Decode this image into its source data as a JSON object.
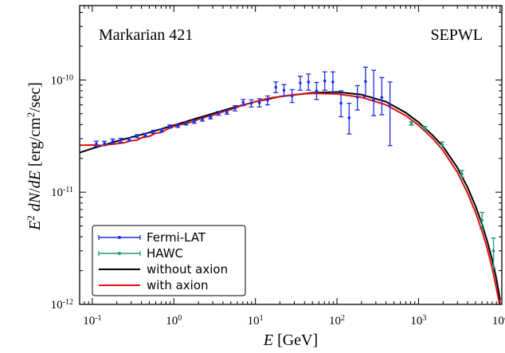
{
  "chart_data": {
    "type": "scatter",
    "annotations": {
      "source": "Markarian 421",
      "model": "SEPWL"
    },
    "xlabel": {
      "symbol": "E",
      "unit": "[GeV]"
    },
    "ylabel": {
      "text": "E2dN/dE [erg/cm2/sec]"
    },
    "x_scale": "log",
    "y_scale": "log",
    "xlim": [
      0.07,
      10500
    ],
    "ylim": [
      1e-12,
      4.6e-10
    ],
    "x_ticks": [
      {
        "value": 0.1,
        "base": "10",
        "exp": "-1"
      },
      {
        "value": 1,
        "base": "10",
        "exp": "0"
      },
      {
        "value": 10,
        "base": "10",
        "exp": "1"
      },
      {
        "value": 100,
        "base": "10",
        "exp": "2"
      },
      {
        "value": 1000,
        "base": "10",
        "exp": "3"
      },
      {
        "value": 10000,
        "base": "10",
        "exp": "4"
      }
    ],
    "y_ticks": [
      {
        "value": 1e-12,
        "base": "10",
        "exp": "-12"
      },
      {
        "value": 1e-11,
        "base": "10",
        "exp": "-11"
      },
      {
        "value": 1e-10,
        "base": "10",
        "exp": "-10"
      }
    ],
    "grid": false,
    "legend_position": "bottom-left",
    "series": [
      {
        "name": "Fermi-LAT",
        "kind": "errorbar",
        "color": "#1f2ee0",
        "points": [
          {
            "x": 0.112,
            "y": 2.7e-11,
            "lo": 2.55e-11,
            "hi": 2.85e-11
          },
          {
            "x": 0.141,
            "y": 2.72e-11,
            "lo": 2.6e-11,
            "hi": 2.84e-11
          },
          {
            "x": 0.178,
            "y": 2.85e-11,
            "lo": 2.72e-11,
            "hi": 2.98e-11
          },
          {
            "x": 0.224,
            "y": 2.9e-11,
            "lo": 2.78e-11,
            "hi": 3.02e-11
          },
          {
            "x": 0.282,
            "y": 2.95e-11,
            "lo": 2.85e-11,
            "hi": 3.05e-11
          },
          {
            "x": 0.355,
            "y": 3.15e-11,
            "lo": 3.05e-11,
            "hi": 3.25e-11
          },
          {
            "x": 0.447,
            "y": 3.25e-11,
            "lo": 3.15e-11,
            "hi": 3.35e-11
          },
          {
            "x": 0.562,
            "y": 3.45e-11,
            "lo": 3.34e-11,
            "hi": 3.56e-11
          },
          {
            "x": 0.708,
            "y": 3.55e-11,
            "lo": 3.44e-11,
            "hi": 3.66e-11
          },
          {
            "x": 0.891,
            "y": 3.85e-11,
            "lo": 3.73e-11,
            "hi": 3.97e-11
          },
          {
            "x": 1.12,
            "y": 3.9e-11,
            "lo": 3.78e-11,
            "hi": 4.02e-11
          },
          {
            "x": 1.41,
            "y": 4.1e-11,
            "lo": 3.97e-11,
            "hi": 4.23e-11
          },
          {
            "x": 1.78,
            "y": 4.25e-11,
            "lo": 4.11e-11,
            "hi": 4.39e-11
          },
          {
            "x": 2.24,
            "y": 4.45e-11,
            "lo": 4.3e-11,
            "hi": 4.6e-11
          },
          {
            "x": 2.82,
            "y": 4.65e-11,
            "lo": 4.5e-11,
            "hi": 4.8e-11
          },
          {
            "x": 3.55,
            "y": 5.05e-11,
            "lo": 4.85e-11,
            "hi": 5.25e-11
          },
          {
            "x": 4.47,
            "y": 5.15e-11,
            "lo": 4.95e-11,
            "hi": 5.35e-11
          },
          {
            "x": 5.62,
            "y": 5.6e-11,
            "lo": 5.3e-11,
            "hi": 5.9e-11
          },
          {
            "x": 7.08,
            "y": 6.3e-11,
            "lo": 5.9e-11,
            "hi": 6.7e-11
          },
          {
            "x": 8.91,
            "y": 6.2e-11,
            "lo": 5.75e-11,
            "hi": 6.65e-11
          },
          {
            "x": 11.2,
            "y": 6.25e-11,
            "lo": 5.75e-11,
            "hi": 6.8e-11
          },
          {
            "x": 14.1,
            "y": 6.6e-11,
            "lo": 6e-11,
            "hi": 7.2e-11
          },
          {
            "x": 17.8,
            "y": 8.6e-11,
            "lo": 7.7e-11,
            "hi": 9.6e-11
          },
          {
            "x": 22.4,
            "y": 8.1e-11,
            "lo": 7.2e-11,
            "hi": 9.1e-11
          },
          {
            "x": 28.2,
            "y": 7.2e-11,
            "lo": 6.3e-11,
            "hi": 8.2e-11
          },
          {
            "x": 35.5,
            "y": 9.4e-11,
            "lo": 8.1e-11,
            "hi": 1.08e-10
          },
          {
            "x": 44.7,
            "y": 9.6e-11,
            "lo": 8.1e-11,
            "hi": 1.13e-10
          },
          {
            "x": 56.2,
            "y": 8e-11,
            "lo": 6.7e-11,
            "hi": 9.5e-11
          },
          {
            "x": 70.8,
            "y": 9.8e-11,
            "lo": 8.1e-11,
            "hi": 1.18e-10
          },
          {
            "x": 89.1,
            "y": 9.6e-11,
            "lo": 7.7e-11,
            "hi": 1.18e-10
          },
          {
            "x": 112,
            "y": 6.2e-11,
            "lo": 4.7e-11,
            "hi": 8e-11
          },
          {
            "x": 141,
            "y": 4.6e-11,
            "lo": 3.3e-11,
            "hi": 6.2e-11
          },
          {
            "x": 178,
            "y": 7e-11,
            "lo": 5.4e-11,
            "hi": 8.9e-11
          },
          {
            "x": 224,
            "y": 9.7e-11,
            "lo": 7.1e-11,
            "hi": 1.3e-10
          },
          {
            "x": 282,
            "y": 6.7e-11,
            "lo": 4.8e-11,
            "hi": 1.22e-10
          },
          {
            "x": 355,
            "y": 7e-11,
            "lo": 4.9e-11,
            "hi": 1.05e-10
          },
          {
            "x": 447,
            "y": 6e-11,
            "lo": 2.6e-11,
            "hi": 9.6e-11
          }
        ]
      },
      {
        "name": "HAWC",
        "kind": "errorbar",
        "color": "#1a9a7f",
        "points": [
          {
            "x": 820,
            "y": 4.1e-11,
            "lo": 3.95e-11,
            "hi": 4.25e-11
          },
          {
            "x": 1200,
            "y": 3.7e-11,
            "lo": 3.55e-11,
            "hi": 3.85e-11
          },
          {
            "x": 1950,
            "y": 2.65e-11,
            "lo": 2.5e-11,
            "hi": 2.8e-11
          },
          {
            "x": 3400,
            "y": 1.45e-11,
            "lo": 1.35e-11,
            "hi": 1.56e-11
          },
          {
            "x": 6000,
            "y": 5.6e-12,
            "lo": 4.7e-12,
            "hi": 6.6e-12
          },
          {
            "x": 8300,
            "y": 3e-12,
            "lo": 2.1e-12,
            "hi": 3.9e-12
          }
        ]
      },
      {
        "name": "without axion",
        "kind": "line",
        "color": "#000000",
        "points": [
          {
            "x": 0.07,
            "y": 2.25e-11
          },
          {
            "x": 0.1,
            "y": 2.45e-11
          },
          {
            "x": 0.2,
            "y": 2.85e-11
          },
          {
            "x": 0.5,
            "y": 3.4e-11
          },
          {
            "x": 1,
            "y": 3.95e-11
          },
          {
            "x": 2,
            "y": 4.6e-11
          },
          {
            "x": 5,
            "y": 5.6e-11
          },
          {
            "x": 10,
            "y": 6.4e-11
          },
          {
            "x": 20,
            "y": 7.1e-11
          },
          {
            "x": 50,
            "y": 7.7e-11
          },
          {
            "x": 100,
            "y": 7.8e-11
          },
          {
            "x": 200,
            "y": 7.4e-11
          },
          {
            "x": 400,
            "y": 6.4e-11
          },
          {
            "x": 700,
            "y": 5.1e-11
          },
          {
            "x": 1000,
            "y": 4.2e-11
          },
          {
            "x": 1500,
            "y": 3.2e-11
          },
          {
            "x": 2000,
            "y": 2.55e-11
          },
          {
            "x": 3000,
            "y": 1.65e-11
          },
          {
            "x": 4000,
            "y": 1.1e-11
          },
          {
            "x": 5000,
            "y": 7.5e-12
          },
          {
            "x": 6000,
            "y": 5.2e-12
          },
          {
            "x": 7000,
            "y": 3.6e-12
          },
          {
            "x": 8000,
            "y": 2.5e-12
          },
          {
            "x": 9000,
            "y": 1.7e-12
          },
          {
            "x": 10000,
            "y": 1.1e-12
          }
        ]
      },
      {
        "name": "with axion",
        "kind": "line",
        "color": "#e01010",
        "points": [
          {
            "x": 0.07,
            "y": 2.62e-11
          },
          {
            "x": 0.1,
            "y": 2.63e-11
          },
          {
            "x": 0.13,
            "y": 2.61e-11
          },
          {
            "x": 0.16,
            "y": 2.66e-11
          },
          {
            "x": 0.2,
            "y": 2.7e-11
          },
          {
            "x": 0.25,
            "y": 2.76e-11
          },
          {
            "x": 0.3,
            "y": 2.88e-11
          },
          {
            "x": 0.35,
            "y": 2.9e-11
          },
          {
            "x": 0.4,
            "y": 3.05e-11
          },
          {
            "x": 0.5,
            "y": 3.15e-11
          },
          {
            "x": 0.6,
            "y": 3.35e-11
          },
          {
            "x": 0.7,
            "y": 3.4e-11
          },
          {
            "x": 0.8,
            "y": 3.6e-11
          },
          {
            "x": 1,
            "y": 3.85e-11
          },
          {
            "x": 1.3,
            "y": 4.05e-11
          },
          {
            "x": 1.6,
            "y": 4.2e-11
          },
          {
            "x": 2,
            "y": 4.45e-11
          },
          {
            "x": 2.5,
            "y": 4.7e-11
          },
          {
            "x": 3,
            "y": 4.85e-11
          },
          {
            "x": 4,
            "y": 5.2e-11
          },
          {
            "x": 5,
            "y": 5.45e-11
          },
          {
            "x": 7,
            "y": 5.95e-11
          },
          {
            "x": 10,
            "y": 6.4e-11
          },
          {
            "x": 15,
            "y": 6.9e-11
          },
          {
            "x": 20,
            "y": 7.1e-11
          },
          {
            "x": 30,
            "y": 7.4e-11
          },
          {
            "x": 50,
            "y": 7.6e-11
          },
          {
            "x": 100,
            "y": 7.5e-11
          },
          {
            "x": 200,
            "y": 7e-11
          },
          {
            "x": 400,
            "y": 6e-11
          },
          {
            "x": 700,
            "y": 4.8e-11
          },
          {
            "x": 1000,
            "y": 3.95e-11
          },
          {
            "x": 1500,
            "y": 3e-11
          },
          {
            "x": 2000,
            "y": 2.35e-11
          },
          {
            "x": 3000,
            "y": 1.5e-11
          },
          {
            "x": 4000,
            "y": 9.8e-12
          },
          {
            "x": 5000,
            "y": 6.6e-12
          },
          {
            "x": 6000,
            "y": 4.5e-12
          },
          {
            "x": 7000,
            "y": 3.1e-12
          },
          {
            "x": 8000,
            "y": 2.1e-12
          },
          {
            "x": 9000,
            "y": 1.4e-12
          },
          {
            "x": 10000,
            "y": 9.5e-13
          }
        ]
      }
    ]
  }
}
